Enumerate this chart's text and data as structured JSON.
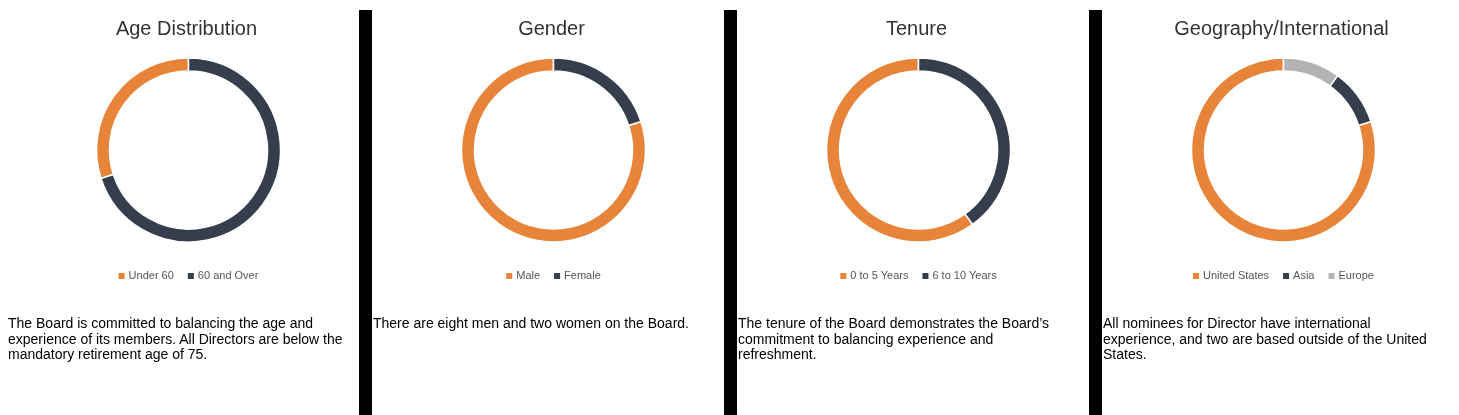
{
  "chart_data": [
    {
      "type": "donut",
      "title": "Age Distribution",
      "categories": [
        "Under 60",
        "60 and Over"
      ],
      "values": [
        30,
        70
      ],
      "colors": [
        "#e8843a",
        "#363e4e"
      ],
      "legend": "bottom",
      "annotations": [
        "The Board is committed to balancing the age and experience of its members. All Directors are below the mandatory retirement age of 75."
      ]
    },
    {
      "type": "donut",
      "title": "Gender",
      "categories": [
        "Male",
        "Female"
      ],
      "values": [
        80,
        20
      ],
      "colors": [
        "#e8843a",
        "#363e4e"
      ],
      "legend": "bottom",
      "annotations": [
        "There are eight men and two women on the Board."
      ]
    },
    {
      "type": "donut",
      "title": "Tenure",
      "categories": [
        "0 to 5 Years",
        "6 to 10 Years"
      ],
      "values": [
        60,
        40
      ],
      "colors": [
        "#e8843a",
        "#363e4e"
      ],
      "legend": "bottom",
      "annotations": [
        "The tenure of the Board demonstrates the Board’s commitment to balancing experience and refreshment."
      ]
    },
    {
      "type": "donut",
      "title": "Geography/International",
      "categories": [
        "United States",
        "Asia",
        "Europe"
      ],
      "values": [
        80,
        10,
        10
      ],
      "colors": [
        "#e8843a",
        "#363e4e",
        "#b3b3b3"
      ],
      "legend": "bottom",
      "annotations": [
        "All nominees for Director have international experience, and two are based outside of the United States."
      ]
    }
  ]
}
